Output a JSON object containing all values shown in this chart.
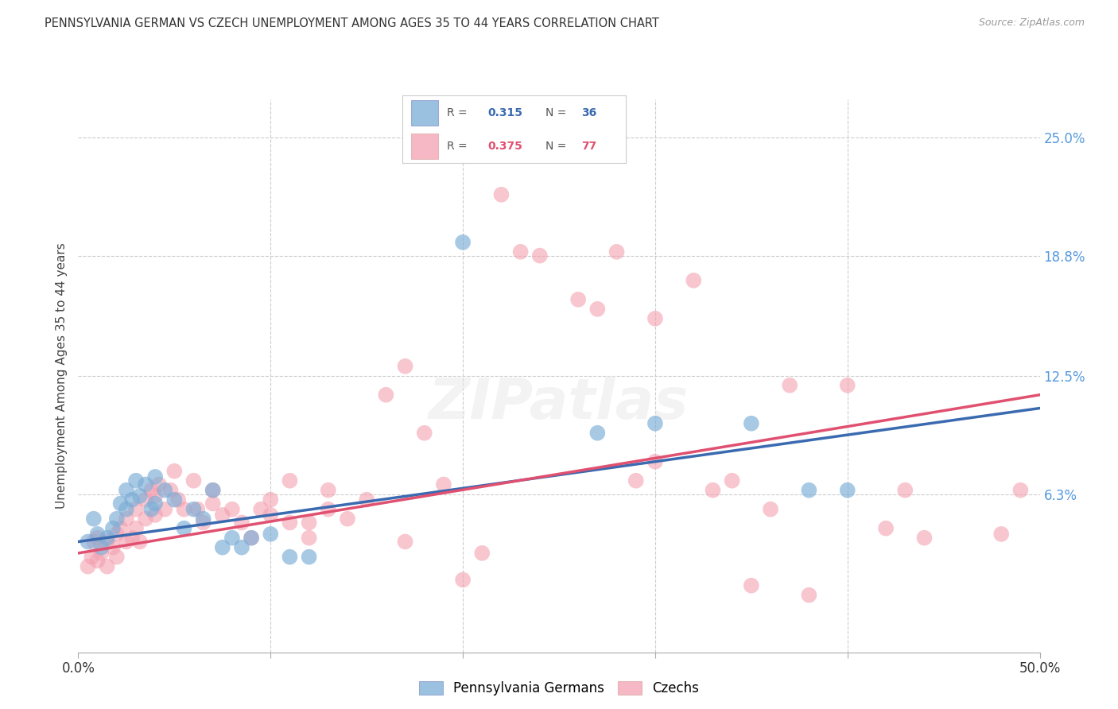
{
  "title": "PENNSYLVANIA GERMAN VS CZECH UNEMPLOYMENT AMONG AGES 35 TO 44 YEARS CORRELATION CHART",
  "source": "Source: ZipAtlas.com",
  "ylabel": "Unemployment Among Ages 35 to 44 years",
  "xlim": [
    0.0,
    0.5
  ],
  "ylim": [
    -0.02,
    0.27
  ],
  "xticks": [
    0.0,
    0.1,
    0.2,
    0.3,
    0.4,
    0.5
  ],
  "xticklabels": [
    "0.0%",
    "",
    "",
    "",
    "",
    "50.0%"
  ],
  "ytick_positions": [
    0.063,
    0.125,
    0.188,
    0.25
  ],
  "ytick_labels": [
    "6.3%",
    "12.5%",
    "18.8%",
    "25.0%"
  ],
  "background_color": "#ffffff",
  "grid_color": "#cccccc",
  "blue_color": "#7aacd6",
  "pink_color": "#f4a0b0",
  "label_blue": "Pennsylvania Germans",
  "label_pink": "Czechs",
  "blue_scatter": [
    [
      0.005,
      0.038
    ],
    [
      0.008,
      0.05
    ],
    [
      0.01,
      0.042
    ],
    [
      0.012,
      0.035
    ],
    [
      0.015,
      0.04
    ],
    [
      0.018,
      0.045
    ],
    [
      0.02,
      0.05
    ],
    [
      0.022,
      0.058
    ],
    [
      0.025,
      0.055
    ],
    [
      0.025,
      0.065
    ],
    [
      0.028,
      0.06
    ],
    [
      0.03,
      0.07
    ],
    [
      0.032,
      0.062
    ],
    [
      0.035,
      0.068
    ],
    [
      0.038,
      0.055
    ],
    [
      0.04,
      0.072
    ],
    [
      0.04,
      0.058
    ],
    [
      0.045,
      0.065
    ],
    [
      0.05,
      0.06
    ],
    [
      0.055,
      0.045
    ],
    [
      0.06,
      0.055
    ],
    [
      0.065,
      0.05
    ],
    [
      0.07,
      0.065
    ],
    [
      0.075,
      0.035
    ],
    [
      0.08,
      0.04
    ],
    [
      0.085,
      0.035
    ],
    [
      0.09,
      0.04
    ],
    [
      0.1,
      0.042
    ],
    [
      0.11,
      0.03
    ],
    [
      0.12,
      0.03
    ],
    [
      0.2,
      0.195
    ],
    [
      0.27,
      0.095
    ],
    [
      0.3,
      0.1
    ],
    [
      0.35,
      0.1
    ],
    [
      0.38,
      0.065
    ],
    [
      0.4,
      0.065
    ]
  ],
  "pink_scatter": [
    [
      0.005,
      0.025
    ],
    [
      0.007,
      0.03
    ],
    [
      0.008,
      0.038
    ],
    [
      0.01,
      0.028
    ],
    [
      0.01,
      0.04
    ],
    [
      0.012,
      0.032
    ],
    [
      0.015,
      0.038
    ],
    [
      0.015,
      0.025
    ],
    [
      0.018,
      0.035
    ],
    [
      0.02,
      0.042
    ],
    [
      0.02,
      0.03
    ],
    [
      0.022,
      0.045
    ],
    [
      0.025,
      0.038
    ],
    [
      0.025,
      0.05
    ],
    [
      0.028,
      0.04
    ],
    [
      0.03,
      0.055
    ],
    [
      0.03,
      0.045
    ],
    [
      0.032,
      0.038
    ],
    [
      0.035,
      0.06
    ],
    [
      0.035,
      0.05
    ],
    [
      0.038,
      0.065
    ],
    [
      0.04,
      0.062
    ],
    [
      0.04,
      0.052
    ],
    [
      0.042,
      0.068
    ],
    [
      0.045,
      0.055
    ],
    [
      0.048,
      0.065
    ],
    [
      0.05,
      0.075
    ],
    [
      0.052,
      0.06
    ],
    [
      0.055,
      0.055
    ],
    [
      0.06,
      0.07
    ],
    [
      0.062,
      0.055
    ],
    [
      0.065,
      0.048
    ],
    [
      0.07,
      0.065
    ],
    [
      0.07,
      0.058
    ],
    [
      0.075,
      0.052
    ],
    [
      0.08,
      0.055
    ],
    [
      0.085,
      0.048
    ],
    [
      0.09,
      0.04
    ],
    [
      0.095,
      0.055
    ],
    [
      0.1,
      0.052
    ],
    [
      0.1,
      0.06
    ],
    [
      0.11,
      0.048
    ],
    [
      0.11,
      0.07
    ],
    [
      0.12,
      0.04
    ],
    [
      0.12,
      0.048
    ],
    [
      0.13,
      0.055
    ],
    [
      0.13,
      0.065
    ],
    [
      0.14,
      0.05
    ],
    [
      0.15,
      0.06
    ],
    [
      0.16,
      0.115
    ],
    [
      0.17,
      0.038
    ],
    [
      0.17,
      0.13
    ],
    [
      0.18,
      0.095
    ],
    [
      0.19,
      0.068
    ],
    [
      0.2,
      0.018
    ],
    [
      0.21,
      0.032
    ],
    [
      0.22,
      0.22
    ],
    [
      0.23,
      0.19
    ],
    [
      0.24,
      0.188
    ],
    [
      0.26,
      0.165
    ],
    [
      0.27,
      0.16
    ],
    [
      0.28,
      0.19
    ],
    [
      0.29,
      0.07
    ],
    [
      0.3,
      0.08
    ],
    [
      0.3,
      0.155
    ],
    [
      0.32,
      0.175
    ],
    [
      0.33,
      0.065
    ],
    [
      0.34,
      0.07
    ],
    [
      0.35,
      0.015
    ],
    [
      0.36,
      0.055
    ],
    [
      0.37,
      0.12
    ],
    [
      0.38,
      0.01
    ],
    [
      0.4,
      0.12
    ],
    [
      0.42,
      0.045
    ],
    [
      0.43,
      0.065
    ],
    [
      0.44,
      0.04
    ],
    [
      0.48,
      0.042
    ],
    [
      0.49,
      0.065
    ]
  ],
  "blue_trend_x": [
    0.0,
    0.5
  ],
  "blue_trend_y": [
    0.038,
    0.108
  ],
  "pink_trend_x": [
    0.0,
    0.5
  ],
  "pink_trend_y": [
    0.032,
    0.115
  ]
}
